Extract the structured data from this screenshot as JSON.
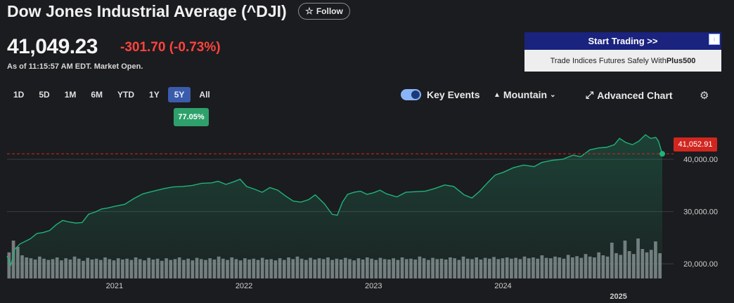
{
  "header": {
    "title": "Dow Jones Industrial Average (^DJI)",
    "follow_label": "Follow",
    "price": "41,049.23",
    "change": "-301.70",
    "change_pct": "(-0.73%)",
    "as_of_label": "As of",
    "as_of_time": "11:15:57 AM EDT. Market Open."
  },
  "ad": {
    "cta": "Start Trading >>",
    "text_prefix": "Trade Indices Futures Safely With ",
    "brand": "Plus500",
    "info_icon": "i"
  },
  "ranges": [
    "1D",
    "5D",
    "1M",
    "6M",
    "YTD",
    "1Y",
    "5Y",
    "All"
  ],
  "active_range": "5Y",
  "period_change": "77.05%",
  "controls": {
    "key_events_label": "Key Events",
    "key_events_on": true,
    "chart_type_label": "Mountain",
    "advanced_label": "Advanced Chart"
  },
  "icons": {
    "star": "star-icon",
    "mountain": "mountain-icon",
    "chevron": "chevron-down-icon",
    "expand": "expand-icon",
    "gear": "gear-icon"
  },
  "colors": {
    "line": "#1fb37a",
    "negative": "#ff433d",
    "badge": "#2ea06b",
    "price_tag": "#d1261f",
    "active_range": "#3b5bab"
  },
  "chart_data": {
    "type": "area",
    "current_price_label": "41,052.91",
    "y_ticks": [
      "40,000.00",
      "30,000.00",
      "20,000.00"
    ],
    "y_tick_values": [
      40000,
      30000,
      20000
    ],
    "x_labels": [
      "2021",
      "2022",
      "2023",
      "2024",
      "2025"
    ],
    "x_label_values": [
      2021,
      2022,
      2023,
      2024,
      2025
    ],
    "ylim": [
      17200,
      47000
    ],
    "xlim": [
      2020.17,
      2025.23
    ],
    "series": [
      {
        "x": [
          2020.17,
          2020.2,
          2020.23,
          2020.27,
          2020.31,
          2020.35,
          2020.4,
          2020.45,
          2020.5,
          2020.55,
          2020.6,
          2020.65,
          2020.7,
          2020.75,
          2020.8,
          2020.85,
          2020.9,
          2020.95,
          2021.0,
          2021.08,
          2021.15,
          2021.22,
          2021.3,
          2021.38,
          2021.45,
          2021.52,
          2021.6,
          2021.67,
          2021.75,
          2021.8,
          2021.86,
          2021.92,
          2021.97,
          2022.02,
          2022.08,
          2022.14,
          2022.2,
          2022.26,
          2022.32,
          2022.38,
          2022.44,
          2022.5,
          2022.55,
          2022.62,
          2022.68,
          2022.72,
          2022.76,
          2022.8,
          2022.85,
          2022.9,
          2022.95,
          2023.0,
          2023.05,
          2023.1,
          2023.18,
          2023.25,
          2023.32,
          2023.4,
          2023.47,
          2023.55,
          2023.62,
          2023.7,
          2023.76,
          2023.82,
          2023.88,
          2023.94,
          2024.0,
          2024.08,
          2024.16,
          2024.24,
          2024.3,
          2024.38,
          2024.46,
          2024.54,
          2024.6,
          2024.67,
          2024.74,
          2024.8,
          2024.86,
          2024.9,
          2024.95,
          2025.0,
          2025.05,
          2025.1,
          2025.14,
          2025.18,
          2025.2,
          2025.23
        ],
        "y": [
          21500,
          19800,
          22800,
          23800,
          24300,
          24800,
          25800,
          26000,
          26400,
          27500,
          28300,
          28000,
          27800,
          27900,
          29500,
          29900,
          30500,
          30700,
          31000,
          31400,
          32500,
          33400,
          33900,
          34400,
          34700,
          34800,
          35000,
          35400,
          35500,
          35800,
          35200,
          35700,
          36200,
          34800,
          34300,
          33700,
          34600,
          34100,
          33000,
          32000,
          31800,
          32300,
          33200,
          31500,
          29500,
          29300,
          31800,
          33300,
          33700,
          33900,
          33300,
          33600,
          34100,
          33400,
          32800,
          33700,
          33800,
          33900,
          34400,
          35100,
          34800,
          33200,
          32600,
          33900,
          35500,
          37000,
          37500,
          38400,
          38900,
          38600,
          39400,
          39800,
          40000,
          40800,
          40500,
          41800,
          42200,
          42300,
          42800,
          44000,
          43200,
          42800,
          43500,
          44700,
          44000,
          44200,
          43500,
          41053
        ]
      }
    ],
    "volume": [
      0.62,
      0.9,
      0.75,
      0.55,
      0.5,
      0.48,
      0.45,
      0.52,
      0.47,
      0.44,
      0.46,
      0.5,
      0.43,
      0.48,
      0.45,
      0.52,
      0.47,
      0.42,
      0.49,
      0.45,
      0.47,
      0.44,
      0.5,
      0.46,
      0.43,
      0.48,
      0.45,
      0.47,
      0.44,
      0.5,
      0.46,
      0.43,
      0.49,
      0.45,
      0.47,
      0.42,
      0.48,
      0.44,
      0.46,
      0.5,
      0.44,
      0.47,
      0.43,
      0.49,
      0.46,
      0.44,
      0.48,
      0.45,
      0.52,
      0.47,
      0.44,
      0.5,
      0.46,
      0.43,
      0.48,
      0.45,
      0.47,
      0.44,
      0.49,
      0.45,
      0.46,
      0.43,
      0.48,
      0.44,
      0.5,
      0.46,
      0.52,
      0.47,
      0.44,
      0.49,
      0.45,
      0.48,
      0.46,
      0.5,
      0.44,
      0.47,
      0.45,
      0.49,
      0.46,
      0.43,
      0.48,
      0.45,
      0.5,
      0.47,
      0.44,
      0.49,
      0.46,
      0.45,
      0.48,
      0.44,
      0.5,
      0.46,
      0.47,
      0.45,
      0.52,
      0.48,
      0.44,
      0.49,
      0.46,
      0.47,
      0.45,
      0.5,
      0.48,
      0.44,
      0.52,
      0.47,
      0.46,
      0.5,
      0.45,
      0.49,
      0.47,
      0.51,
      0.46,
      0.48,
      0.5,
      0.47,
      0.49,
      0.46,
      0.52,
      0.48,
      0.5,
      0.47,
      0.55,
      0.49,
      0.48,
      0.52,
      0.5,
      0.47,
      0.56,
      0.5,
      0.53,
      0.49,
      0.58,
      0.52,
      0.5,
      0.62,
      0.55,
      0.52,
      0.85,
      0.6,
      0.56,
      0.9,
      0.65,
      0.58,
      0.95,
      0.7,
      0.62,
      0.68,
      0.88,
      0.6
    ],
    "grid": true
  }
}
